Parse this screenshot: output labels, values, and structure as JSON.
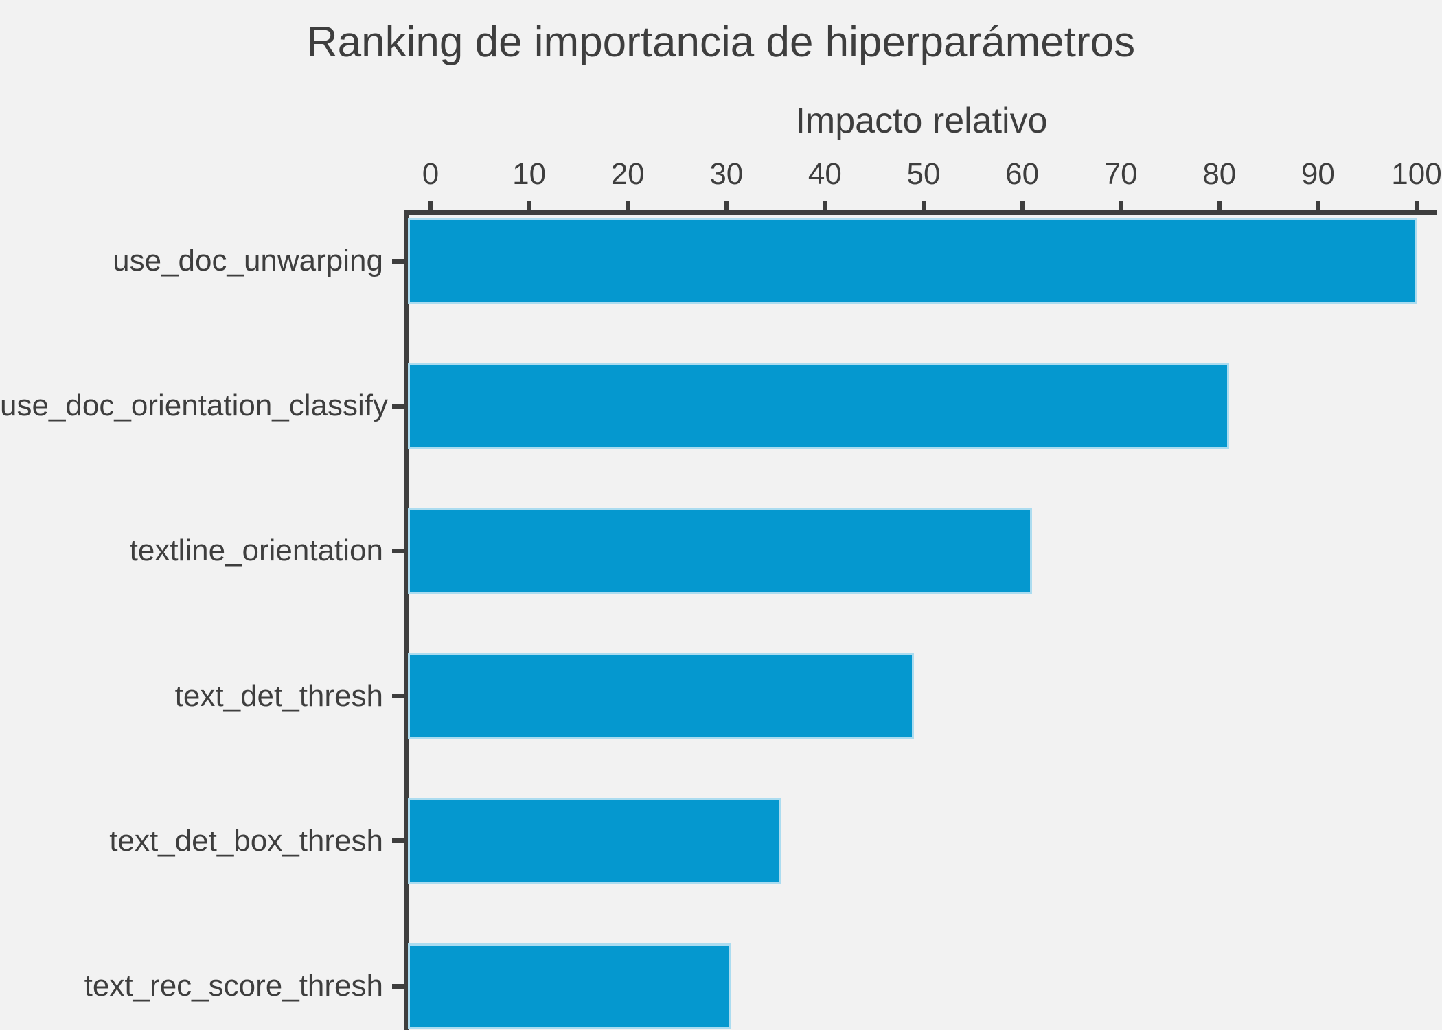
{
  "title": "Ranking de importancia de hiperparámetros",
  "x_axis": {
    "label": "Impacto relativo",
    "ticks": [
      0,
      10,
      20,
      30,
      40,
      50,
      60,
      70,
      80,
      90,
      100
    ]
  },
  "colors": {
    "background": "#f2f2f2",
    "bar_fill": "#0598cf",
    "bar_edge": "#abdcf0",
    "axis": "#3e3e3e",
    "text": "#3e3e3e"
  },
  "chart_data": {
    "type": "bar",
    "orientation": "horizontal",
    "title": "Ranking de importancia de hiperparámetros",
    "xlabel": "Impacto relativo",
    "xlabel_position": "top",
    "categories": [
      "use_doc_unwarping",
      "use_doc_orientation_classify",
      "textline_orientation",
      "text_det_thresh",
      "text_det_box_thresh",
      "text_rec_score_thresh"
    ],
    "values": [
      100,
      81,
      61,
      49,
      35.5,
      30.5
    ],
    "xticks": [
      0,
      10,
      20,
      30,
      40,
      50,
      60,
      70,
      80,
      90,
      100
    ],
    "xlim": [
      -2.5,
      102.1
    ],
    "grid": false,
    "legend": "none",
    "note": "bottom bar is cut off by the image edge"
  }
}
